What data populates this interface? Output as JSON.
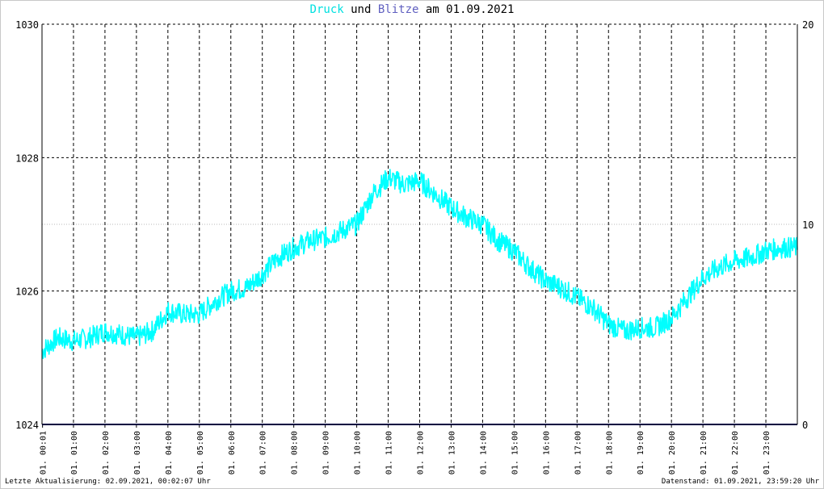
{
  "title": {
    "part1": "Druck",
    "part2": " und ",
    "part3": "Blitze",
    "part4": " am 01.09.2021"
  },
  "footer": {
    "left": "Letzte Aktualisierung: 02.09.2021, 00:02:07 Uhr",
    "right": "Datenstand: 01.09.2021, 23:59:20 Uhr"
  },
  "colors": {
    "druck": "#00ffff",
    "blitze": "#5050c8",
    "grid": "#000000",
    "baseline": "#000080"
  },
  "chart_data": {
    "type": "line",
    "title": "Druck und Blitze am 01.09.2021",
    "ylim_left": [
      1024,
      1030
    ],
    "ylim_right": [
      0,
      20
    ],
    "left_ticks": [
      "1024",
      "1026",
      "1028",
      "1030"
    ],
    "right_ticks": [
      "0",
      "10",
      "20"
    ],
    "x_tick_labels": [
      "01. 00:01",
      "01. 01:00",
      "01. 02:00",
      "01. 03:00",
      "01. 04:00",
      "01. 05:00",
      "01. 06:00",
      "01. 07:00",
      "01. 08:00",
      "01. 09:00",
      "01. 10:00",
      "01. 11:00",
      "01. 12:00",
      "01. 13:00",
      "01. 14:00",
      "01. 15:00",
      "01. 16:00",
      "01. 17:00",
      "01. 18:00",
      "01. 19:00",
      "01. 20:00",
      "01. 21:00",
      "01. 22:00",
      "01. 23:00"
    ],
    "x_tick_hours": [
      0.0167,
      1,
      2,
      3,
      4,
      5,
      6,
      7,
      8,
      9,
      10,
      11,
      12,
      13,
      14,
      15,
      16,
      17,
      18,
      19,
      20,
      21,
      22,
      23
    ],
    "x_range_hours": [
      0,
      24
    ],
    "grid": true,
    "series": [
      {
        "name": "Druck",
        "axis": "left",
        "x_hours": [
          0,
          0.5,
          1,
          1.5,
          2,
          2.5,
          3,
          3.5,
          4,
          4.5,
          5,
          5.5,
          6,
          6.5,
          7,
          7.5,
          8,
          8.5,
          9,
          9.5,
          10,
          10.5,
          11,
          11.5,
          12,
          12.5,
          13,
          13.5,
          14,
          14.5,
          15,
          15.5,
          16,
          16.5,
          17,
          17.5,
          18,
          18.5,
          19,
          19.5,
          20,
          20.5,
          21,
          21.5,
          22,
          22.5,
          23,
          23.5,
          24
        ],
        "values": [
          1025.1,
          1025.3,
          1025.25,
          1025.3,
          1025.4,
          1025.35,
          1025.3,
          1025.4,
          1025.7,
          1025.65,
          1025.65,
          1025.85,
          1026.0,
          1026.05,
          1026.25,
          1026.5,
          1026.65,
          1026.75,
          1026.8,
          1026.9,
          1027.0,
          1027.45,
          1027.7,
          1027.6,
          1027.65,
          1027.45,
          1027.25,
          1027.1,
          1027.0,
          1026.75,
          1026.6,
          1026.35,
          1026.15,
          1026.05,
          1025.9,
          1025.75,
          1025.5,
          1025.4,
          1025.45,
          1025.45,
          1025.6,
          1025.9,
          1026.2,
          1026.35,
          1026.45,
          1026.5,
          1026.6,
          1026.65,
          1026.65
        ]
      },
      {
        "name": "Blitze",
        "axis": "right",
        "x_hours": [
          0,
          24
        ],
        "values": [
          0,
          0
        ]
      }
    ]
  }
}
